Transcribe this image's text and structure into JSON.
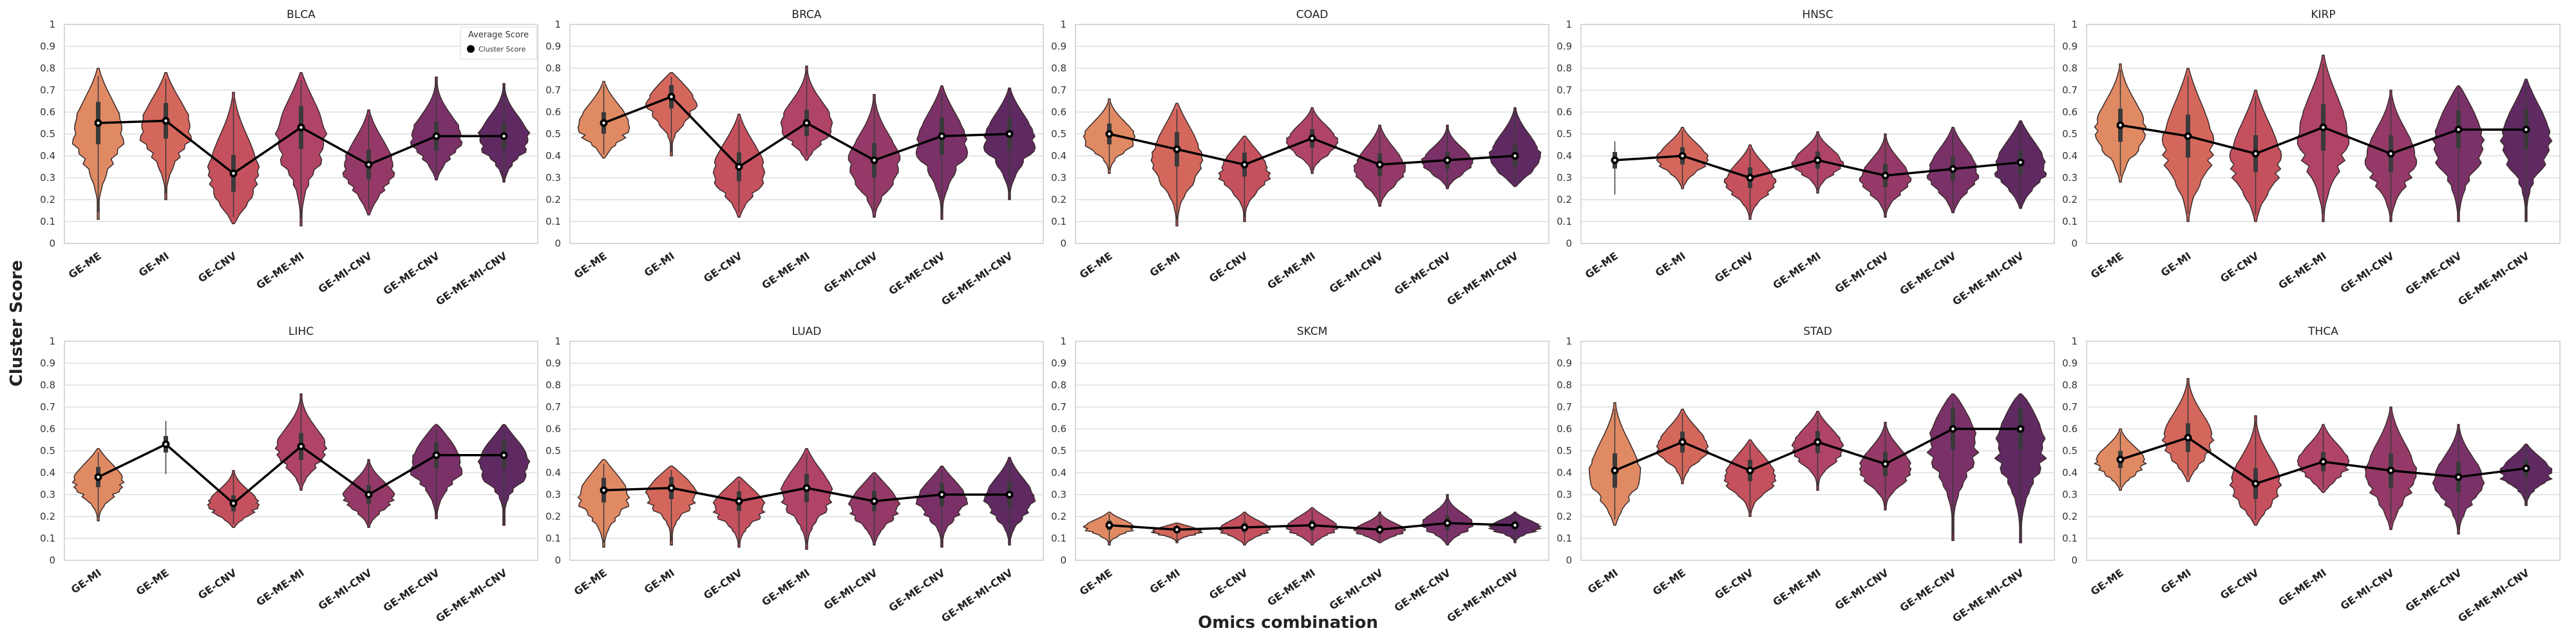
{
  "figure": {
    "ylabel": "Cluster Score",
    "xlabel": "Omics combination",
    "legend": {
      "title": "Average Score",
      "label": "Cluster Score",
      "placement": "top-right",
      "panel": "BLCA"
    }
  },
  "palette": [
    "#E08A64",
    "#D4675C",
    "#C5515E",
    "#B04466",
    "#953A68",
    "#7A3168",
    "#5F2A62"
  ],
  "chart_data": [
    {
      "type": "violin",
      "title": "BLCA",
      "ylim": [
        0,
        1
      ],
      "yticks": [
        0,
        0.1,
        0.2,
        0.3,
        0.4,
        0.5,
        0.6,
        0.7,
        0.8,
        0.9,
        1
      ],
      "grid": true,
      "categories": [
        "GE-ME",
        "GE-MI",
        "GE-CNV",
        "GE-ME-MI",
        "GE-MI-CNV",
        "GE-ME-CNV",
        "GE-ME-MI-CNV"
      ],
      "means": [
        0.55,
        0.56,
        0.32,
        0.53,
        0.36,
        0.49,
        0.49
      ],
      "ranges": [
        [
          0.11,
          0.8
        ],
        [
          0.2,
          0.78
        ],
        [
          0.09,
          0.69
        ],
        [
          0.08,
          0.78
        ],
        [
          0.13,
          0.61
        ],
        [
          0.29,
          0.76
        ],
        [
          0.28,
          0.73
        ]
      ]
    },
    {
      "type": "violin",
      "title": "BRCA",
      "ylim": [
        0,
        1
      ],
      "yticks": [
        0,
        0.1,
        0.2,
        0.3,
        0.4,
        0.5,
        0.6,
        0.7,
        0.8,
        0.9,
        1
      ],
      "grid": true,
      "categories": [
        "GE-ME",
        "GE-MI",
        "GE-CNV",
        "GE-ME-MI",
        "GE-MI-CNV",
        "GE-ME-CNV",
        "GE-ME-MI-CNV"
      ],
      "means": [
        0.55,
        0.67,
        0.35,
        0.55,
        0.38,
        0.49,
        0.5
      ],
      "ranges": [
        [
          0.39,
          0.74
        ],
        [
          0.4,
          0.78
        ],
        [
          0.12,
          0.59
        ],
        [
          0.38,
          0.81
        ],
        [
          0.12,
          0.68
        ],
        [
          0.11,
          0.72
        ],
        [
          0.2,
          0.71
        ]
      ]
    },
    {
      "type": "violin",
      "title": "COAD",
      "ylim": [
        0,
        1
      ],
      "yticks": [
        0,
        0.1,
        0.2,
        0.3,
        0.4,
        0.5,
        0.6,
        0.7,
        0.8,
        0.9,
        1
      ],
      "grid": true,
      "categories": [
        "GE-ME",
        "GE-MI",
        "GE-CNV",
        "GE-ME-MI",
        "GE-MI-CNV",
        "GE-ME-CNV",
        "GE-ME-MI-CNV"
      ],
      "means": [
        0.5,
        0.43,
        0.36,
        0.48,
        0.36,
        0.38,
        0.4
      ],
      "ranges": [
        [
          0.32,
          0.66
        ],
        [
          0.08,
          0.64
        ],
        [
          0.1,
          0.49
        ],
        [
          0.32,
          0.62
        ],
        [
          0.17,
          0.54
        ],
        [
          0.25,
          0.54
        ],
        [
          0.26,
          0.62
        ]
      ]
    },
    {
      "type": "violin",
      "title": "HNSC",
      "ylim": [
        0,
        1
      ],
      "yticks": [
        0,
        0.1,
        0.2,
        0.3,
        0.4,
        0.5,
        0.6,
        0.7,
        0.8,
        0.9,
        1
      ],
      "grid": true,
      "categories": [
        "GE-ME",
        "GE-MI",
        "GE-CNV",
        "GE-ME-MI",
        "GE-MI-CNV",
        "GE-ME-CNV",
        "GE-ME-MI-CNV"
      ],
      "means": [
        0.38,
        0.4,
        0.3,
        0.38,
        0.31,
        0.34,
        0.37
      ],
      "ranges": [
        [
          0.21,
          0.48
        ],
        [
          0.25,
          0.53
        ],
        [
          0.11,
          0.45
        ],
        [
          0.23,
          0.51
        ],
        [
          0.12,
          0.5
        ],
        [
          0.14,
          0.53
        ],
        [
          0.16,
          0.56
        ]
      ]
    },
    {
      "type": "violin",
      "title": "KIRP",
      "ylim": [
        0,
        1
      ],
      "yticks": [
        0,
        0.1,
        0.2,
        0.3,
        0.4,
        0.5,
        0.6,
        0.7,
        0.8,
        0.9,
        1
      ],
      "grid": true,
      "categories": [
        "GE-ME",
        "GE-MI",
        "GE-CNV",
        "GE-ME-MI",
        "GE-MI-CNV",
        "GE-ME-CNV",
        "GE-ME-MI-CNV"
      ],
      "means": [
        0.54,
        0.49,
        0.41,
        0.53,
        0.41,
        0.52,
        0.52
      ],
      "ranges": [
        [
          0.28,
          0.82
        ],
        [
          0.1,
          0.8
        ],
        [
          0.1,
          0.7
        ],
        [
          0.1,
          0.86
        ],
        [
          0.1,
          0.7
        ],
        [
          0.1,
          0.72
        ],
        [
          0.1,
          0.75
        ]
      ]
    },
    {
      "type": "violin",
      "title": "LIHC",
      "ylim": [
        0,
        1
      ],
      "yticks": [
        0,
        0.1,
        0.2,
        0.3,
        0.4,
        0.5,
        0.6,
        0.7,
        0.8,
        0.9,
        1
      ],
      "grid": true,
      "categories": [
        "GE-MI",
        "GE-ME",
        "GE-CNV",
        "GE-ME-MI",
        "GE-MI-CNV",
        "GE-ME-CNV",
        "GE-ME-MI-CNV"
      ],
      "means": [
        0.38,
        0.53,
        0.26,
        0.52,
        0.3,
        0.48,
        0.48
      ],
      "ranges": [
        [
          0.18,
          0.51
        ],
        [
          0.38,
          0.65
        ],
        [
          0.15,
          0.41
        ],
        [
          0.32,
          0.76
        ],
        [
          0.15,
          0.46
        ],
        [
          0.19,
          0.62
        ],
        [
          0.16,
          0.62
        ]
      ]
    },
    {
      "type": "violin",
      "title": "LUAD",
      "ylim": [
        0,
        1
      ],
      "yticks": [
        0,
        0.1,
        0.2,
        0.3,
        0.4,
        0.5,
        0.6,
        0.7,
        0.8,
        0.9,
        1
      ],
      "grid": true,
      "categories": [
        "GE-ME",
        "GE-MI",
        "GE-CNV",
        "GE-ME-MI",
        "GE-MI-CNV",
        "GE-ME-CNV",
        "GE-ME-MI-CNV"
      ],
      "means": [
        0.32,
        0.33,
        0.27,
        0.33,
        0.27,
        0.3,
        0.3
      ],
      "ranges": [
        [
          0.06,
          0.46
        ],
        [
          0.07,
          0.43
        ],
        [
          0.06,
          0.38
        ],
        [
          0.05,
          0.51
        ],
        [
          0.07,
          0.4
        ],
        [
          0.06,
          0.43
        ],
        [
          0.07,
          0.47
        ]
      ]
    },
    {
      "type": "violin",
      "title": "SKCM",
      "ylim": [
        0,
        1
      ],
      "yticks": [
        0,
        0.1,
        0.2,
        0.3,
        0.4,
        0.5,
        0.6,
        0.7,
        0.8,
        0.9,
        1
      ],
      "grid": true,
      "categories": [
        "GE-ME",
        "GE-MI",
        "GE-CNV",
        "GE-ME-MI",
        "GE-MI-CNV",
        "GE-ME-CNV",
        "GE-ME-MI-CNV"
      ],
      "means": [
        0.16,
        0.14,
        0.15,
        0.16,
        0.14,
        0.17,
        0.16
      ],
      "ranges": [
        [
          0.07,
          0.22
        ],
        [
          0.08,
          0.17
        ],
        [
          0.07,
          0.22
        ],
        [
          0.07,
          0.24
        ],
        [
          0.08,
          0.22
        ],
        [
          0.07,
          0.3
        ],
        [
          0.08,
          0.22
        ]
      ]
    },
    {
      "type": "violin",
      "title": "STAD",
      "ylim": [
        0,
        1
      ],
      "yticks": [
        0,
        0.1,
        0.2,
        0.3,
        0.4,
        0.5,
        0.6,
        0.7,
        0.8,
        0.9,
        1
      ],
      "grid": true,
      "categories": [
        "GE-MI",
        "GE-ME",
        "GE-CNV",
        "GE-ME-MI",
        "GE-MI-CNV",
        "GE-ME-CNV",
        "GE-ME-MI-CNV"
      ],
      "means": [
        0.41,
        0.54,
        0.41,
        0.54,
        0.44,
        0.6,
        0.6
      ],
      "ranges": [
        [
          0.16,
          0.72
        ],
        [
          0.35,
          0.69
        ],
        [
          0.2,
          0.55
        ],
        [
          0.32,
          0.68
        ],
        [
          0.23,
          0.63
        ],
        [
          0.09,
          0.76
        ],
        [
          0.08,
          0.76
        ]
      ]
    },
    {
      "type": "violin",
      "title": "THCA",
      "ylim": [
        0,
        1
      ],
      "yticks": [
        0,
        0.1,
        0.2,
        0.3,
        0.4,
        0.5,
        0.6,
        0.7,
        0.8,
        0.9,
        1
      ],
      "grid": true,
      "categories": [
        "GE-ME",
        "GE-MI",
        "GE-CNV",
        "GE-ME-MI",
        "GE-MI-CNV",
        "GE-ME-CNV",
        "GE-ME-MI-CNV"
      ],
      "means": [
        0.46,
        0.56,
        0.35,
        0.45,
        0.41,
        0.38,
        0.42
      ],
      "ranges": [
        [
          0.32,
          0.6
        ],
        [
          0.36,
          0.83
        ],
        [
          0.16,
          0.66
        ],
        [
          0.31,
          0.62
        ],
        [
          0.14,
          0.7
        ],
        [
          0.12,
          0.62
        ],
        [
          0.25,
          0.53
        ]
      ]
    }
  ]
}
